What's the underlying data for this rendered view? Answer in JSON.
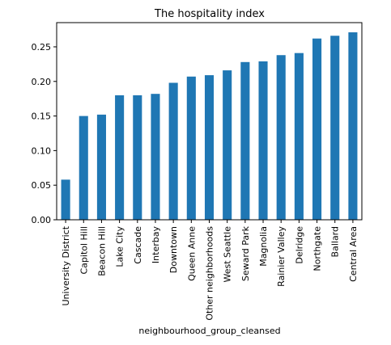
{
  "chart_data": {
    "type": "bar",
    "title": "The hospitality index",
    "xlabel": "neighbourhood_group_cleansed",
    "ylabel": "",
    "categories": [
      "University District",
      "Capitol Hill",
      "Beacon Hill",
      "Lake City",
      "Cascade",
      "Interbay",
      "Downtown",
      "Queen Anne",
      "Other neighborhoods",
      "West Seattle",
      "Seward Park",
      "Magnolia",
      "Rainier Valley",
      "Delridge",
      "Northgate",
      "Ballard",
      "Central Area"
    ],
    "values": [
      0.058,
      0.15,
      0.152,
      0.18,
      0.18,
      0.182,
      0.198,
      0.207,
      0.209,
      0.216,
      0.228,
      0.229,
      0.238,
      0.241,
      0.262,
      0.266,
      0.271
    ],
    "ylim": [
      0,
      0.285
    ],
    "yticks": [
      0.0,
      0.05,
      0.1,
      0.15,
      0.2,
      0.25
    ],
    "ytick_labels": [
      "0.00",
      "0.05",
      "0.10",
      "0.15",
      "0.20",
      "0.25"
    ],
    "bar_color": "#1f77b4",
    "grid": false,
    "legend": "none"
  }
}
